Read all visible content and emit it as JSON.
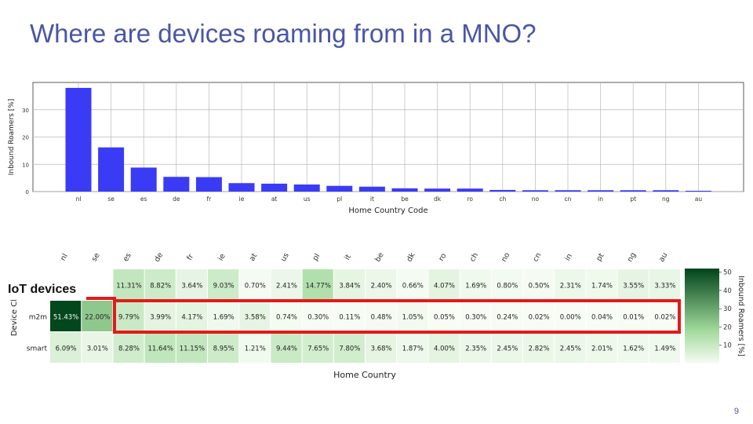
{
  "slide": {
    "title": "Where are devices roaming from in a MNO?",
    "callout": "IoT devices",
    "page_number": "9"
  },
  "colors": {
    "title": "#4a56a6",
    "bar": "#3a3cf5",
    "highlight": "#e21a1a",
    "heat_low": "#f7fcf5",
    "heat_high": "#00441b"
  },
  "chart_data": [
    {
      "type": "bar",
      "title": "",
      "xlabel": "Home Country Code",
      "ylabel": "Inbound Roamers [%]",
      "ylim": [
        0,
        40
      ],
      "yticks": [
        0,
        10,
        20,
        30
      ],
      "grid": true,
      "categories": [
        "nl",
        "se",
        "es",
        "de",
        "fr",
        "ie",
        "at",
        "us",
        "pl",
        "it",
        "be",
        "dk",
        "ro",
        "ch",
        "no",
        "cn",
        "in",
        "pt",
        "ng",
        "au"
      ],
      "values": [
        38,
        16.2,
        8.8,
        5.4,
        5.3,
        3.1,
        2.9,
        2.6,
        2.1,
        1.8,
        1.2,
        1.1,
        1.1,
        0.6,
        0.5,
        0.5,
        0.5,
        0.5,
        0.5,
        0.3
      ]
    },
    {
      "type": "heatmap",
      "xlabel": "Home Country",
      "ylabel": "Device Cl.",
      "colorbar_label": "Inbound Roamers [%]",
      "colorbar_ticks": [
        10,
        20,
        30,
        40,
        50
      ],
      "vmin": 0,
      "vmax": 52,
      "columns": [
        "nl",
        "se",
        "es",
        "de",
        "fr",
        "ie",
        "at",
        "us",
        "pl",
        "it",
        "be",
        "dk",
        "ro",
        "ch",
        "no",
        "cn",
        "in",
        "pt",
        "ng",
        "au"
      ],
      "rows": [
        {
          "name": "",
          "values": [
            null,
            null,
            11.31,
            8.82,
            3.64,
            9.03,
            0.7,
            2.41,
            14.77,
            3.84,
            2.4,
            0.66,
            4.07,
            1.69,
            0.8,
            0.5,
            2.31,
            1.74,
            3.55,
            3.33
          ],
          "labels": [
            "",
            "",
            "11.31%",
            "8.82%",
            "3.64%",
            "9.03%",
            "0.70%",
            "2.41%",
            "14.77%",
            "3.84%",
            "2.40%",
            "0.66%",
            "4.07%",
            "1.69%",
            "0.80%",
            "0.50%",
            "2.31%",
            "1.74%",
            "3.55%",
            "3.33%"
          ]
        },
        {
          "name": "m2m",
          "values": [
            51.43,
            22.0,
            9.79,
            3.99,
            4.17,
            1.69,
            3.58,
            0.74,
            0.3,
            0.11,
            0.48,
            1.05,
            0.05,
            0.3,
            0.24,
            0.02,
            0.0,
            0.04,
            0.01,
            0.02
          ],
          "labels": [
            "51.43%",
            "22.00%",
            "9.79%",
            "3.99%",
            "4.17%",
            "1.69%",
            "3.58%",
            "0.74%",
            "0.30%",
            "0.11%",
            "0.48%",
            "1.05%",
            "0.05%",
            "0.30%",
            "0.24%",
            "0.02%",
            "0.00%",
            "0.04%",
            "0.01%",
            "0.02%"
          ]
        },
        {
          "name": "smart",
          "values": [
            6.09,
            3.01,
            8.28,
            11.64,
            11.15,
            8.95,
            1.21,
            9.44,
            7.65,
            7.8,
            3.68,
            1.87,
            4.0,
            2.35,
            2.45,
            2.82,
            2.45,
            2.01,
            1.62,
            1.49
          ],
          "labels": [
            "6.09%",
            "3.01%",
            "8.28%",
            "11.64%",
            "11.15%",
            "8.95%",
            "1.21%",
            "9.44%",
            "7.65%",
            "7.80%",
            "3.68%",
            "1.87%",
            "4.00%",
            "2.35%",
            "2.45%",
            "2.82%",
            "2.45%",
            "2.01%",
            "1.62%",
            "1.49%"
          ]
        }
      ]
    }
  ]
}
